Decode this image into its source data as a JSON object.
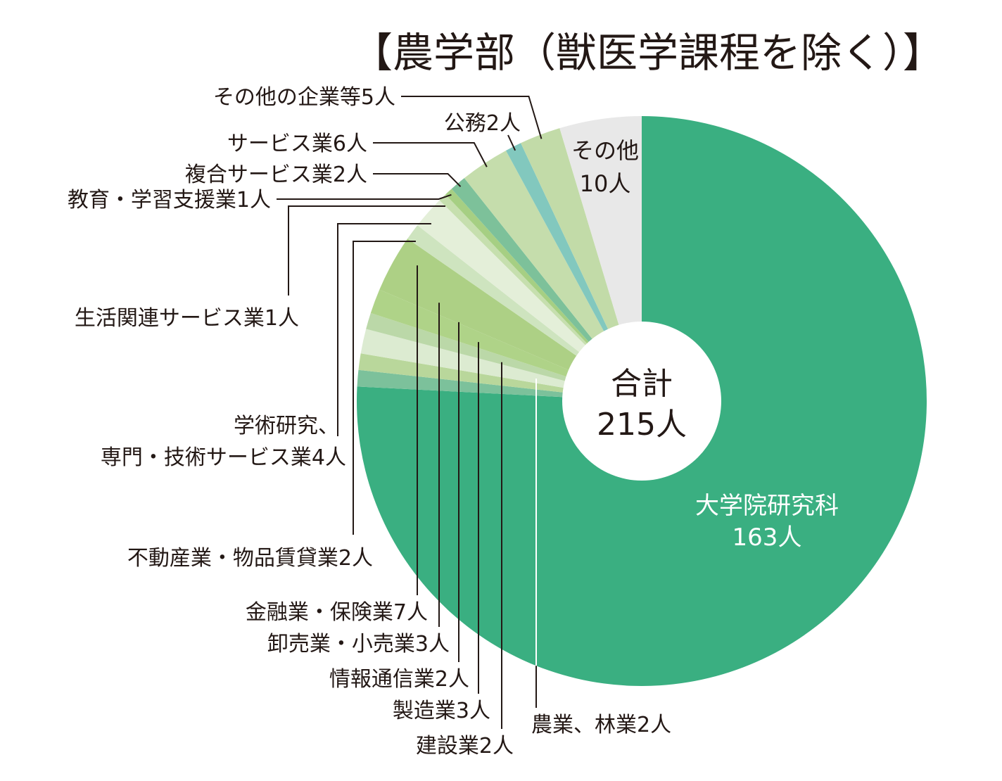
{
  "chart_data": {
    "type": "pie",
    "style": "donut",
    "title": "【農学部（獣医学課程を除く）】",
    "center_label": [
      "合計",
      "215人"
    ],
    "total": 215,
    "slices": [
      {
        "name": "大学院研究科",
        "value": 163,
        "label": "大学院研究科",
        "value_label": "163人",
        "color": "#3AAF81"
      },
      {
        "name": "農業、林業",
        "value": 2,
        "label": "農業、林業2人",
        "color": "#7CC19B"
      },
      {
        "name": "建設業",
        "value": 2,
        "label": "建設業2人",
        "color": "#B9D79B"
      },
      {
        "name": "製造業",
        "value": 3,
        "label": "製造業3人",
        "color": "#DCEBD1"
      },
      {
        "name": "情報通信業",
        "value": 2,
        "label": "情報通信業2人",
        "color": "#BBD8A8"
      },
      {
        "name": "卸売業・小売業",
        "value": 3,
        "label": "卸売業・小売業3人",
        "color": "#AFD388"
      },
      {
        "name": "金融業・保険業",
        "value": 7,
        "label": "金融業・保険業7人",
        "color": "#ADD085"
      },
      {
        "name": "不動産業・物品賃貸業",
        "value": 2,
        "label": "不動産業・物品賃貸業2人",
        "color": "#CEE4BF"
      },
      {
        "name": "学術研究、専門・技術サービス業",
        "value": 4,
        "label": "学術研究、専門・技術サービス業4人",
        "label_lines": [
          "学術研究、",
          "専門・技術サービス業4人"
        ],
        "color": "#E4EFD9"
      },
      {
        "name": "生活関連サービス業",
        "value": 1,
        "label": "生活関連サービス業1人",
        "color": "#C6DFAE"
      },
      {
        "name": "教育・学習支援業",
        "value": 1,
        "label": "教育・学習支援業1人",
        "color": "#A6CF83"
      },
      {
        "name": "複合サービス業",
        "value": 2,
        "label": "複合サービス業2人",
        "color": "#7DC19A"
      },
      {
        "name": "サービス業",
        "value": 6,
        "label": "サービス業6人",
        "color": "#C5DDAC"
      },
      {
        "name": "公務",
        "value": 2,
        "label": "公務2人",
        "color": "#82C8BE"
      },
      {
        "name": "その他の企業等",
        "value": 5,
        "label": "その他の企業等5人",
        "color": "#C2DBA8"
      },
      {
        "name": "その他",
        "value": 10,
        "label": "その他",
        "value_label": "10人",
        "color": "#E8E8E8"
      }
    ]
  }
}
